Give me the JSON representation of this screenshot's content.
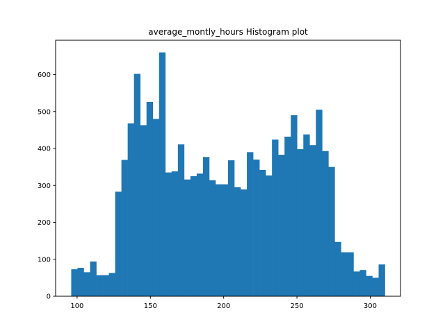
{
  "chart_data": {
    "type": "bar",
    "title": "average_montly_hours Histogram plot",
    "xlabel": "",
    "ylabel": "",
    "xlim": [
      85.35,
      320.65
    ],
    "ylim": [
      0,
      693
    ],
    "x_ticks": [
      100,
      150,
      200,
      250,
      300
    ],
    "y_ticks": [
      0,
      100,
      200,
      300,
      400,
      500,
      600
    ],
    "bin_range": [
      96,
      310
    ],
    "bins": 50,
    "bar_color": "#1f77b4",
    "values": [
      73,
      77,
      65,
      94,
      57,
      57,
      63,
      283,
      369,
      468,
      602,
      463,
      526,
      480,
      660,
      335,
      338,
      411,
      316,
      325,
      332,
      377,
      314,
      303,
      303,
      368,
      295,
      289,
      390,
      370,
      342,
      327,
      424,
      383,
      432,
      490,
      398,
      438,
      409,
      505,
      393,
      350,
      147,
      119,
      119,
      67,
      71,
      55,
      50,
      86
    ]
  }
}
